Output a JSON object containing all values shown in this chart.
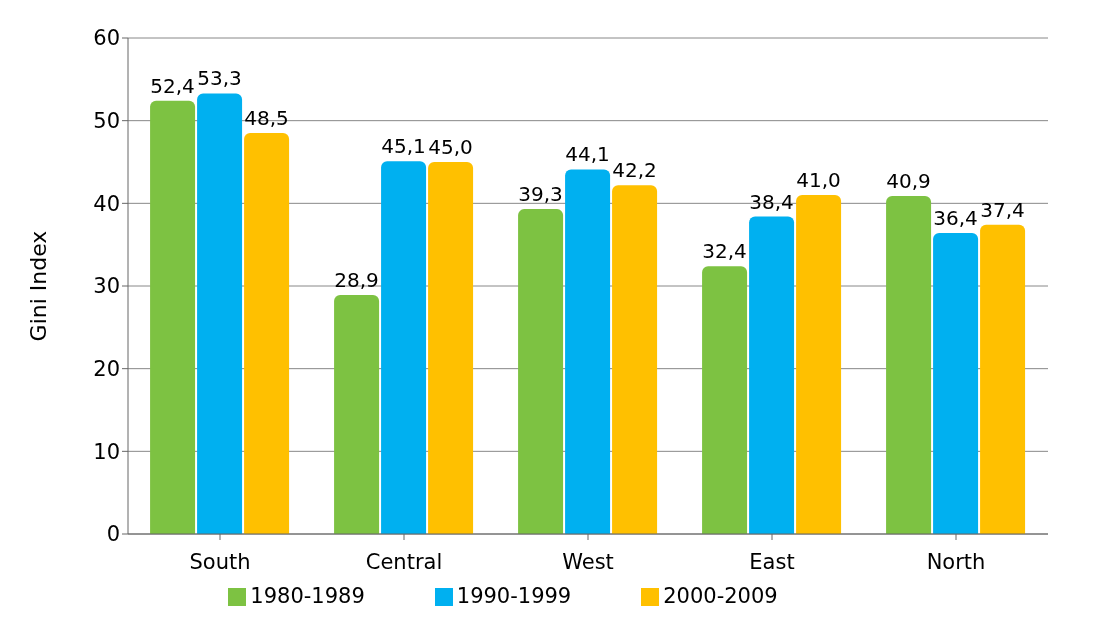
{
  "chart_data": {
    "type": "bar",
    "ylabel": "Gini Index",
    "categories": [
      "South",
      "Central",
      "West",
      "East",
      "North"
    ],
    "series": [
      {
        "name": "1980-1989",
        "color": "#7dc242",
        "values": [
          52.4,
          28.9,
          39.3,
          32.4,
          40.9
        ],
        "value_labels": [
          "52,4",
          "28,9",
          "39,3",
          "32,4",
          "40,9"
        ]
      },
      {
        "name": "1990-1999",
        "color": "#00b0f0",
        "values": [
          53.3,
          45.1,
          44.1,
          38.4,
          36.4
        ],
        "value_labels": [
          "53,3",
          "45,1",
          "44,1",
          "38,4",
          "36,4"
        ]
      },
      {
        "name": "2000-2009",
        "color": "#ffc000",
        "values": [
          48.5,
          45.0,
          42.2,
          41.0,
          37.4
        ],
        "value_labels": [
          "48,5",
          "45,0",
          "42,2",
          "41,0",
          "37,4"
        ]
      }
    ],
    "ylim": [
      0,
      60
    ],
    "yticks": [
      0,
      10,
      20,
      30,
      40,
      50,
      60
    ],
    "grid": "y",
    "legend": "bottom"
  }
}
